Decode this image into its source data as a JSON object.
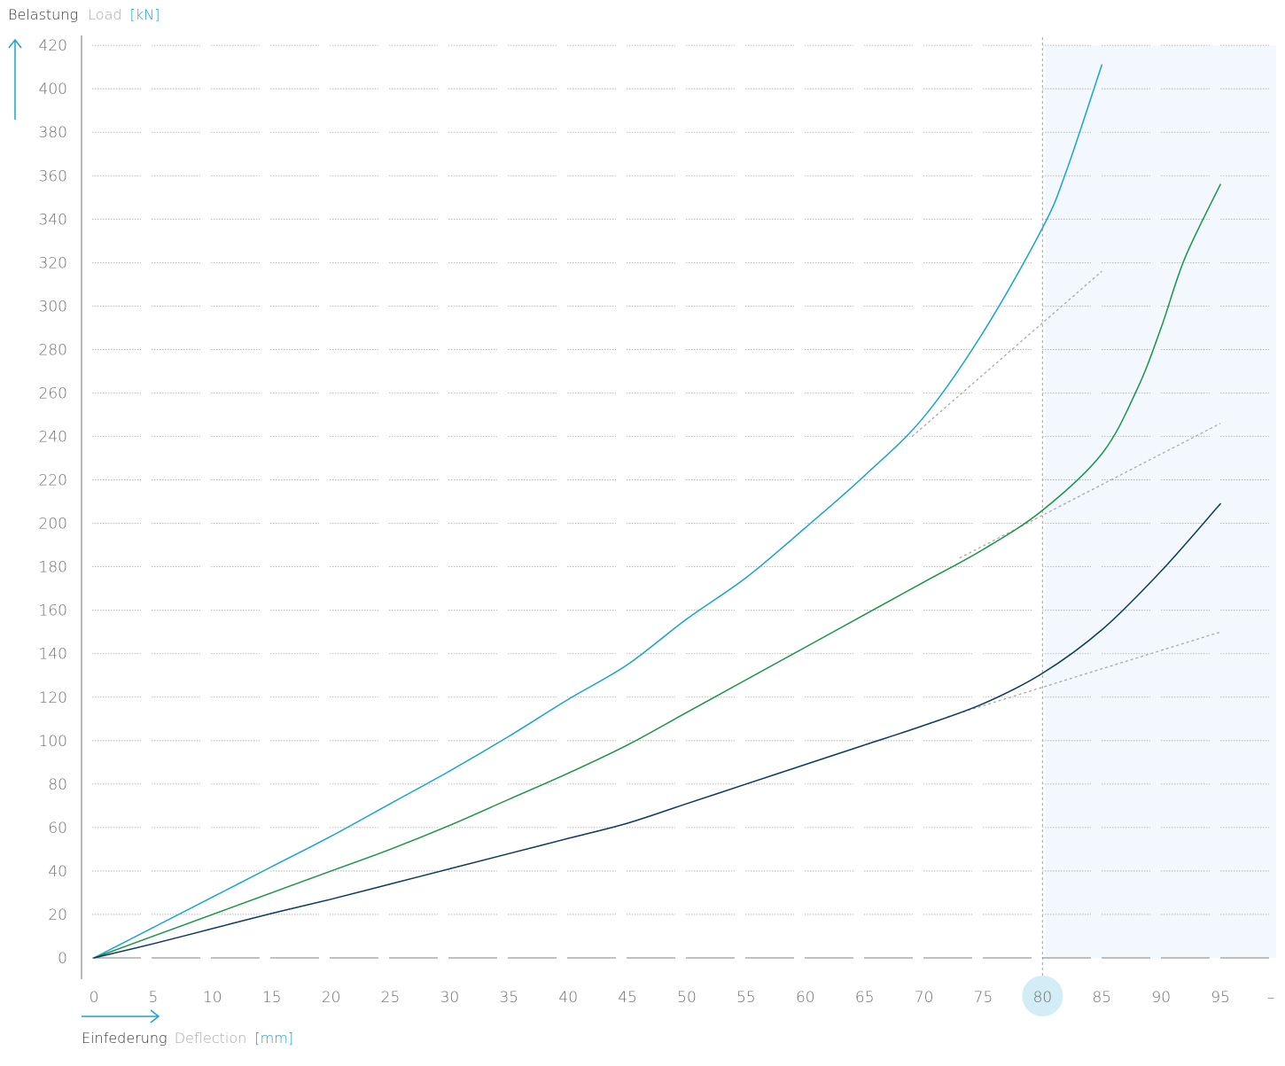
{
  "y_axis": {
    "de_label": "Belastung",
    "en_label": "Load",
    "unit": "[kN]"
  },
  "x_axis": {
    "de_label": "Einfederung",
    "en_label": "Deflection",
    "unit": "[mm]"
  },
  "x_end_tick_label": "–",
  "highlight_x": 80,
  "colors": {
    "accent": "#1aa3cc",
    "series_1": "#1aa3cc",
    "series_2": "#1a9447",
    "series_3": "#0e3a5c",
    "shade": "#f2f8fd",
    "grid": "#aaaaaa",
    "tick_text": "#6f6f6f",
    "highlight_tick_bg": "#d3edf7",
    "extrapolation": "#a8a8a8"
  },
  "chart_data": {
    "type": "line",
    "title": "",
    "xlabel": "Einfederung Deflection [mm]",
    "ylabel": "Belastung Load [kN]",
    "xlim": [
      0,
      100
    ],
    "ylim": [
      0,
      420
    ],
    "x_ticks": [
      0,
      5,
      10,
      15,
      20,
      25,
      30,
      35,
      40,
      45,
      50,
      55,
      60,
      65,
      70,
      75,
      80,
      85,
      90,
      95
    ],
    "y_ticks": [
      0,
      20,
      40,
      60,
      80,
      100,
      120,
      140,
      160,
      180,
      200,
      220,
      240,
      260,
      280,
      300,
      320,
      340,
      360,
      380,
      400,
      420
    ],
    "grid": true,
    "shaded_x_range": [
      80,
      100
    ],
    "series": [
      {
        "x": [
          0,
          5,
          10,
          15,
          20,
          25,
          30,
          35,
          40,
          45,
          50,
          55,
          60,
          65,
          70,
          75,
          80,
          82,
          85
        ],
        "values": [
          0,
          14,
          28,
          42,
          56,
          71,
          86,
          102,
          119,
          135,
          156,
          175,
          198,
          222,
          249,
          288,
          336,
          362,
          411
        ]
      },
      {
        "x": [
          0,
          5,
          10,
          15,
          20,
          25,
          30,
          35,
          40,
          45,
          50,
          55,
          60,
          65,
          70,
          75,
          80,
          85,
          88,
          90,
          92,
          95
        ],
        "values": [
          0,
          10,
          20,
          30,
          40,
          50,
          61,
          73,
          85,
          98,
          113,
          128,
          143,
          158,
          173,
          188,
          206,
          232,
          262,
          290,
          322,
          356
        ]
      },
      {
        "x": [
          0,
          5,
          10,
          15,
          20,
          25,
          30,
          35,
          40,
          45,
          50,
          55,
          60,
          65,
          70,
          75,
          80,
          85,
          90,
          95
        ],
        "values": [
          0,
          6.5,
          13.5,
          20.5,
          27,
          34,
          41,
          48,
          55,
          62,
          71,
          80,
          89,
          98,
          107,
          117,
          131,
          151,
          178,
          209
        ]
      }
    ],
    "extrapolations": [
      {
        "x": [
          69,
          85
        ],
        "values": [
          240,
          316
        ]
      },
      {
        "x": [
          73,
          95
        ],
        "values": [
          184,
          246
        ]
      },
      {
        "x": [
          72,
          95
        ],
        "values": [
          111,
          150
        ]
      }
    ]
  }
}
